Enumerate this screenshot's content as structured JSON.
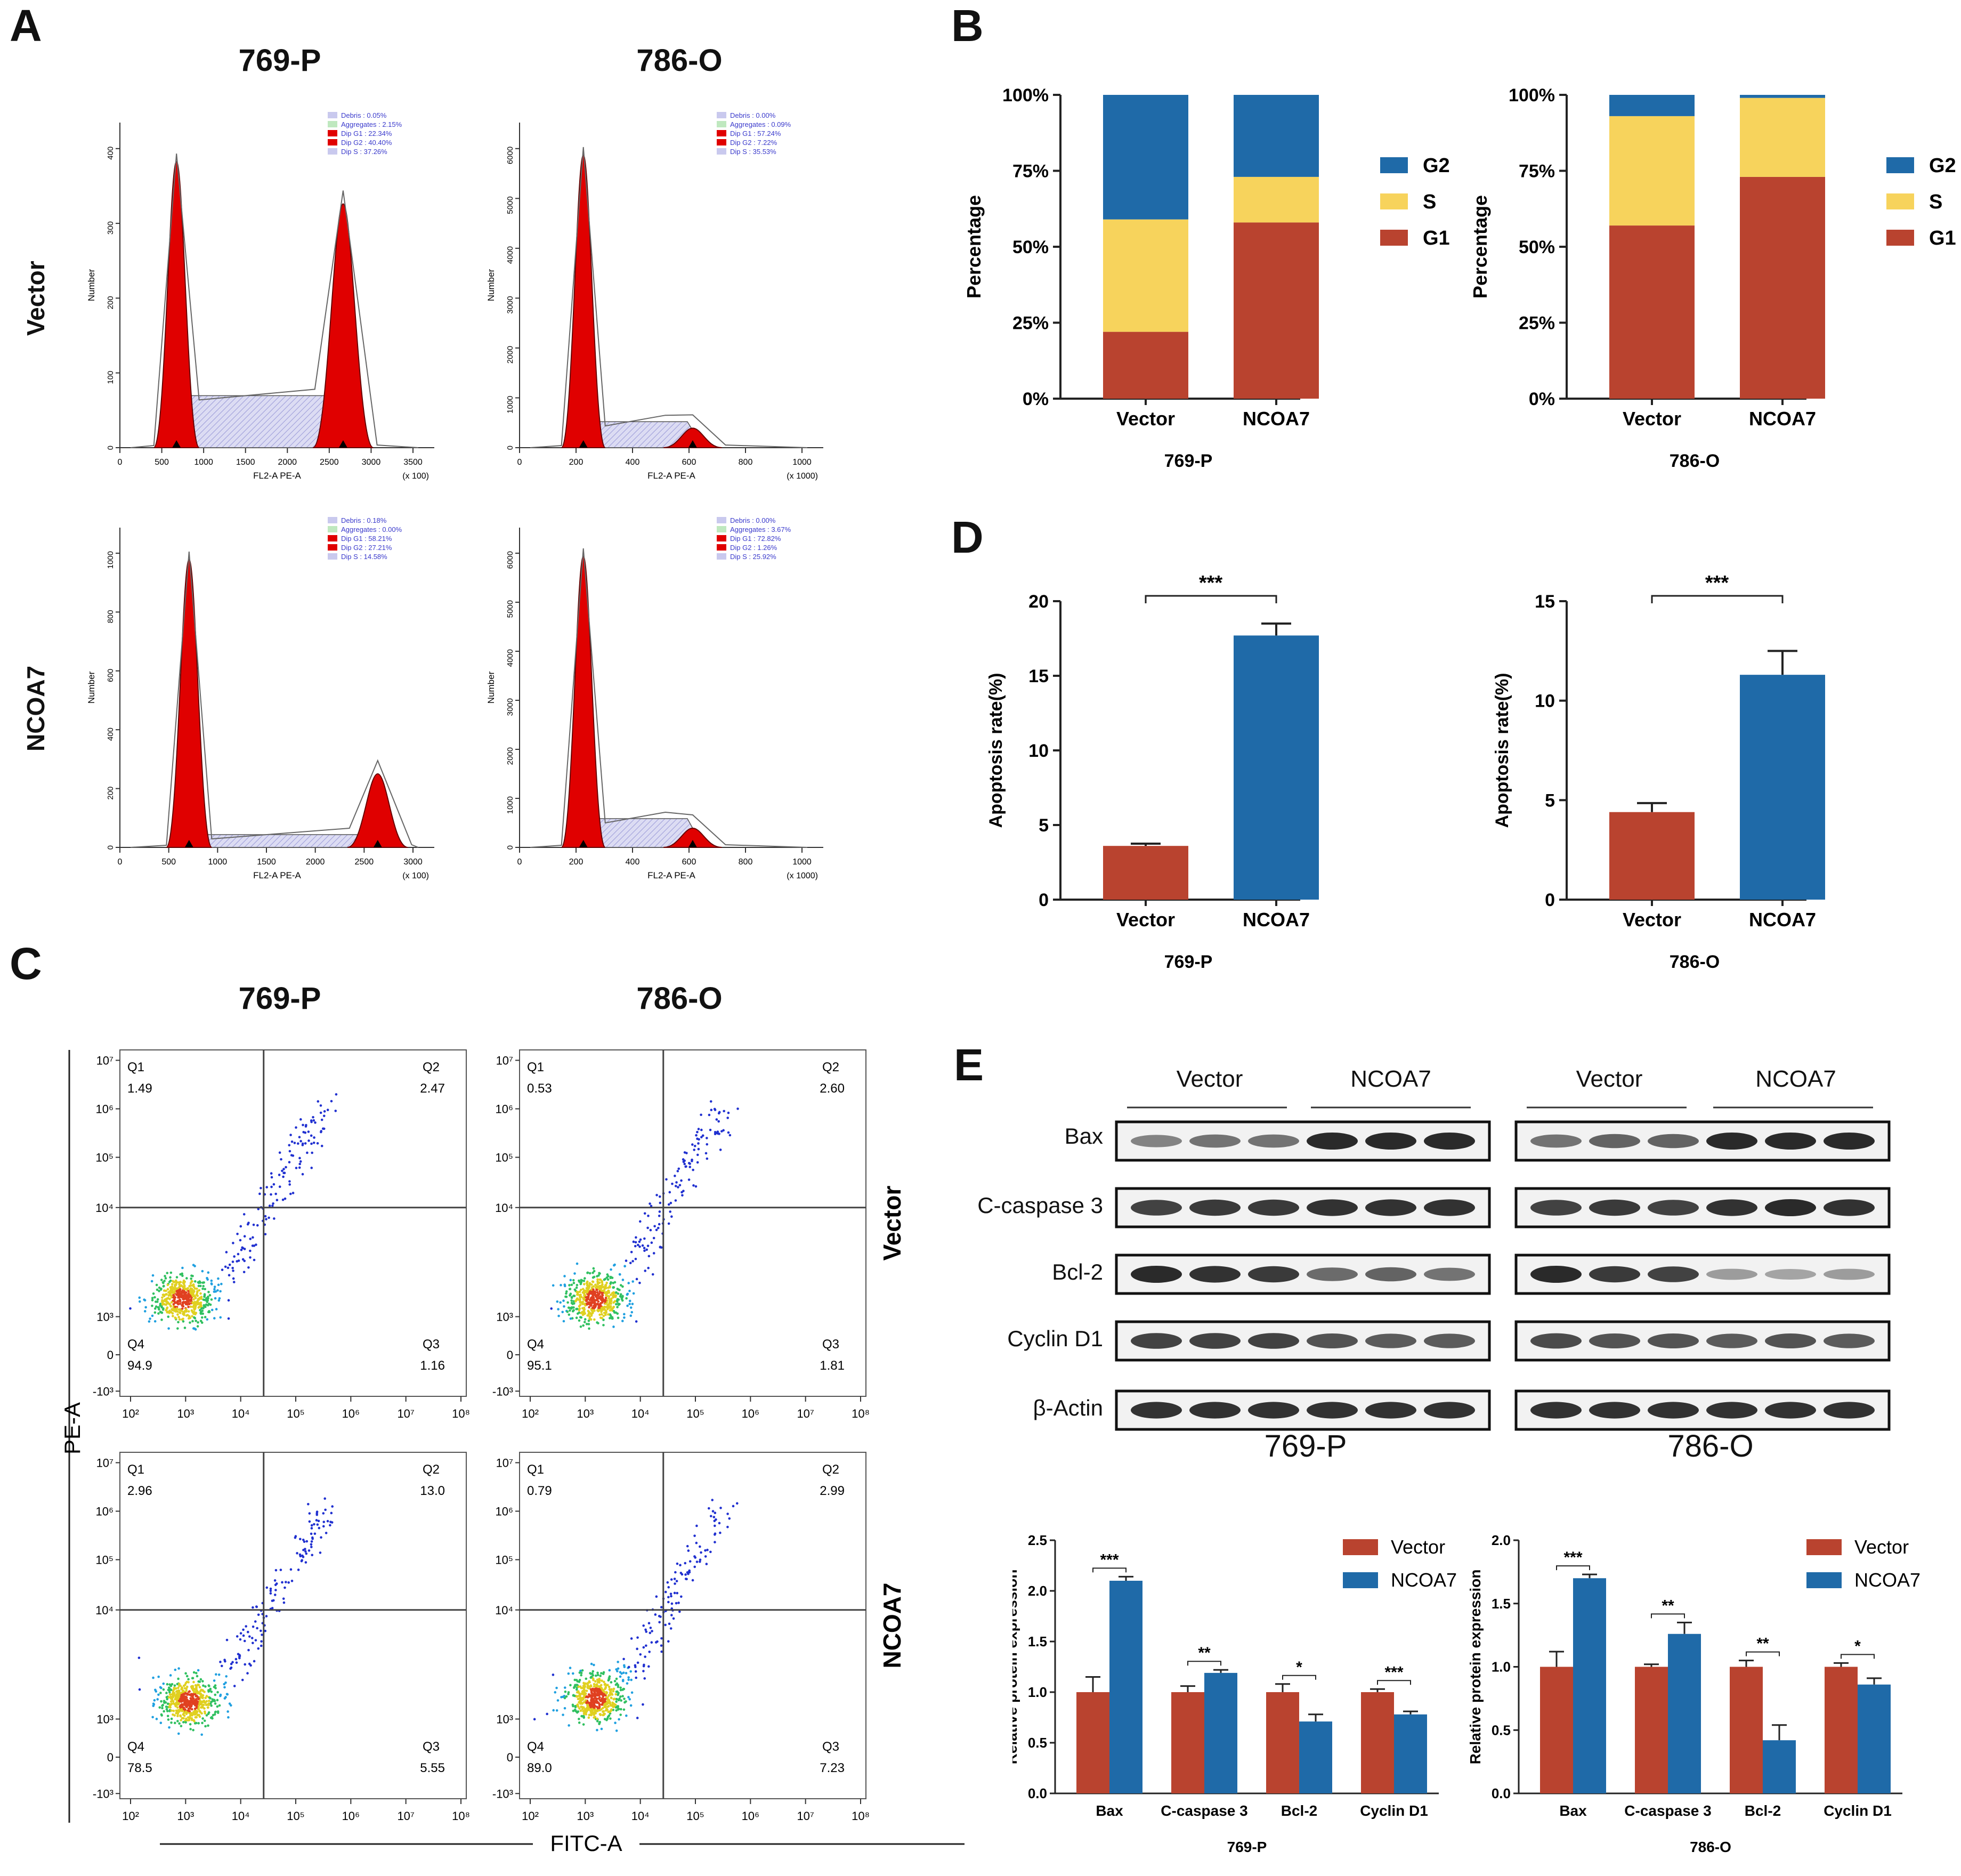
{
  "panel_labels": {
    "A": "A",
    "B": "B",
    "C": "C",
    "D": "D",
    "E": "E"
  },
  "colors": {
    "red": "#e00000",
    "vector": "#b9432f",
    "ncoa7": "#1f6aa8",
    "s_yellow": "#f7d35c",
    "g2_blue": "#1f6aa8",
    "g1_red": "#b9432f",
    "hatch": "#c9c9ee"
  },
  "panel_a": {
    "col_titles": [
      "769-P",
      "786-O"
    ],
    "row_labels": [
      "Vector",
      "NCOA7"
    ],
    "ylabel": "Number",
    "xlabel": "FL2-A PE-A",
    "xunit_769": "(x 100)",
    "xunit_786": "(x 1000)",
    "xticks_769_top": [
      "0",
      "500",
      "1000",
      "1500",
      "2000",
      "2500",
      "3000",
      "3500"
    ],
    "xticks_769_bot": [
      "0",
      "500",
      "1000",
      "1500",
      "2000",
      "2500",
      "3000"
    ],
    "xticks_786": [
      "0",
      "200",
      "400",
      "600",
      "800",
      "1000"
    ],
    "yticks_769_top": [
      "0",
      "100",
      "200",
      "300",
      "400"
    ],
    "yticks_769_bot": [
      "0",
      "200",
      "400",
      "600",
      "800",
      "1000"
    ],
    "yticks_786": [
      "0",
      "1000",
      "2000",
      "3000",
      "4000",
      "5000",
      "6000"
    ],
    "legends": [
      [
        "Debris : 0.05%",
        "Aggregates : 2.15%",
        "Dip G1 : 22.34%",
        "Dip G2 : 40.40%",
        "Dip S : 37.26%"
      ],
      [
        "Debris : 0.00%",
        "Aggregates : 0.09%",
        "Dip G1 : 57.24%",
        "Dip G2 : 7.22%",
        "Dip S : 35.53%"
      ],
      [
        "Debris : 0.18%",
        "Aggregates : 0.00%",
        "Dip G1 : 58.21%",
        "Dip G2 : 27.21%",
        "Dip S : 14.58%"
      ],
      [
        "Debris : 0.00%",
        "Aggregates : 3.67%",
        "Dip G1 : 72.82%",
        "Dip G2 : 1.26%",
        "Dip S : 25.92%"
      ]
    ]
  },
  "chart_data": [
    {
      "type": "bar",
      "stacked": true,
      "title": "769-P",
      "categories": [
        "Vector",
        "NCOA7"
      ],
      "series": [
        {
          "name": "G1",
          "values": [
            22,
            58
          ]
        },
        {
          "name": "S",
          "values": [
            37,
            15
          ]
        },
        {
          "name": "G2",
          "values": [
            41,
            27
          ]
        }
      ],
      "ylabel": "Percentage",
      "yticks": [
        "0%",
        "25%",
        "50%",
        "75%",
        "100%"
      ],
      "ylim": [
        0,
        100
      ]
    },
    {
      "type": "bar",
      "stacked": true,
      "title": "786-O",
      "categories": [
        "Vector",
        "NCOA7"
      ],
      "series": [
        {
          "name": "G1",
          "values": [
            57,
            73
          ]
        },
        {
          "name": "S",
          "values": [
            36,
            26
          ]
        },
        {
          "name": "G2",
          "values": [
            7,
            1
          ]
        }
      ],
      "ylabel": "Percentage",
      "yticks": [
        "0%",
        "25%",
        "50%",
        "75%",
        "100%"
      ],
      "ylim": [
        0,
        100
      ]
    },
    {
      "type": "bar",
      "title": "769-P",
      "categories": [
        "Vector",
        "NCOA7"
      ],
      "values": [
        3.6,
        17.7
      ],
      "errors": [
        0.15,
        0.8
      ],
      "ylabel": "Apoptosis rate(%)",
      "yticks": [
        "0",
        "5",
        "10",
        "15",
        "20"
      ],
      "ylim": [
        0,
        20
      ],
      "significance": "***"
    },
    {
      "type": "bar",
      "title": "786-O",
      "categories": [
        "Vector",
        "NCOA7"
      ],
      "values": [
        4.4,
        11.3
      ],
      "errors": [
        0.45,
        1.2
      ],
      "ylabel": "Apoptosis rate(%)",
      "yticks": [
        "0",
        "5",
        "10",
        "15"
      ],
      "ylim": [
        0,
        15
      ],
      "significance": "***"
    },
    {
      "type": "bar",
      "title": "769-P",
      "categories": [
        "Bax",
        "C-caspase 3",
        "Bcl-2",
        "Cyclin D1"
      ],
      "series": [
        {
          "name": "Vector",
          "values": [
            1.0,
            1.0,
            1.0,
            1.0
          ],
          "errors": [
            0.15,
            0.06,
            0.08,
            0.03
          ]
        },
        {
          "name": "NCOA7",
          "values": [
            2.1,
            1.19,
            0.71,
            0.78
          ],
          "errors": [
            0.04,
            0.03,
            0.07,
            0.03
          ]
        }
      ],
      "significance": [
        "***",
        "**",
        "*",
        "***"
      ],
      "ylabel": "Relative protein expression",
      "yticks": [
        "0.0",
        "0.5",
        "1.0",
        "1.5",
        "2.0",
        "2.5"
      ],
      "ylim": [
        0,
        2.5
      ]
    },
    {
      "type": "bar",
      "title": "786-O",
      "categories": [
        "Bax",
        "C-caspase 3",
        "Bcl-2",
        "Cyclin D1"
      ],
      "series": [
        {
          "name": "Vector",
          "values": [
            1.0,
            1.0,
            1.0,
            1.0
          ],
          "errors": [
            0.12,
            0.02,
            0.05,
            0.03
          ]
        },
        {
          "name": "NCOA7",
          "values": [
            1.7,
            1.26,
            0.42,
            0.86
          ],
          "errors": [
            0.03,
            0.09,
            0.12,
            0.05
          ]
        }
      ],
      "significance": [
        "***",
        "**",
        "**",
        "*"
      ],
      "ylabel": "Relative protein expression",
      "yticks": [
        "0.0",
        "0.5",
        "1.0",
        "1.5",
        "2.0"
      ],
      "ylim": [
        0,
        2.0
      ]
    }
  ],
  "panel_b": {
    "legend": [
      "G2",
      "S",
      "G1"
    ],
    "xlabel_left": "769-P",
    "xlabel_right": "786-O"
  },
  "panel_c": {
    "col_titles": [
      "769-P",
      "786-O"
    ],
    "row_labels": [
      "Vector",
      "NCOA7"
    ],
    "ylabel": "PE-A",
    "xlabel": "FITC-A",
    "quadrants": [
      {
        "q1": "Q1",
        "q1v": "1.49",
        "q2": "Q2",
        "q2v": "2.47",
        "q3": "Q3",
        "q3v": "1.16",
        "q4": "Q4",
        "q4v": "94.9"
      },
      {
        "q1": "Q1",
        "q1v": "0.53",
        "q2": "Q2",
        "q2v": "2.60",
        "q3": "Q3",
        "q3v": "1.81",
        "q4": "Q4",
        "q4v": "95.1"
      },
      {
        "q1": "Q1",
        "q1v": "2.96",
        "q2": "Q2",
        "q2v": "13.0",
        "q3": "Q3",
        "q3v": "5.55",
        "q4": "Q4",
        "q4v": "78.5"
      },
      {
        "q1": "Q1",
        "q1v": "0.79",
        "q2": "Q2",
        "q2v": "2.99",
        "q3": "Q3",
        "q3v": "7.23",
        "q4": "Q4",
        "q4v": "89.0"
      }
    ],
    "yticks": [
      "-10³",
      "0",
      "10³",
      "10⁴",
      "10⁵",
      "10⁶",
      "10⁷"
    ],
    "xticks": [
      "10²",
      "10³",
      "10⁴",
      "10⁵",
      "10⁶",
      "10⁷",
      "10⁸"
    ]
  },
  "panel_e": {
    "group_labels": [
      "Vector",
      "NCOA7",
      "Vector",
      "NCOA7"
    ],
    "blot_labels": [
      "Bax",
      "C-caspase 3",
      "Bcl-2",
      "Cyclin D1",
      "β-Actin"
    ],
    "cell_labels": [
      "769-P",
      "786-O"
    ],
    "legend": [
      "Vector",
      "NCOA7"
    ]
  }
}
